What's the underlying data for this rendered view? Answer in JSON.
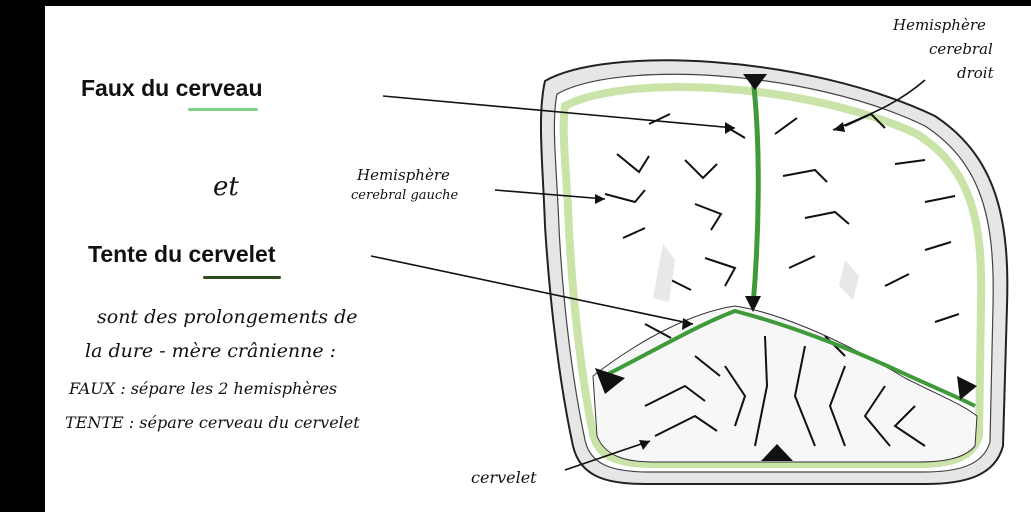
{
  "colors": {
    "faux_accent": "#7fd18a",
    "tente_accent": "#2f4a1e",
    "dura": "#c9e3a8",
    "falx": "#3f9a3a"
  },
  "labels": {
    "faux_part1": "Faux du ",
    "faux_part2": "cerveau",
    "et": "et",
    "tente_part1": "Tente du ",
    "tente_part2": "cervelet",
    "desc_line1": "sont des prolongements de",
    "desc_line2": "la dure - mère crânienne :",
    "faux_def": "FAUX : sépare les 2 hemisphères",
    "tente_def": "TENTE : sépare cerveau du cervelet",
    "hemi_gauche_1": "Hemisphère",
    "hemi_gauche_2": "cerebral gauche",
    "hemi_droit_1": "Hemisphère",
    "hemi_droit_2": "cerebral",
    "hemi_droit_3": "droit",
    "cervelet": "cervelet"
  }
}
